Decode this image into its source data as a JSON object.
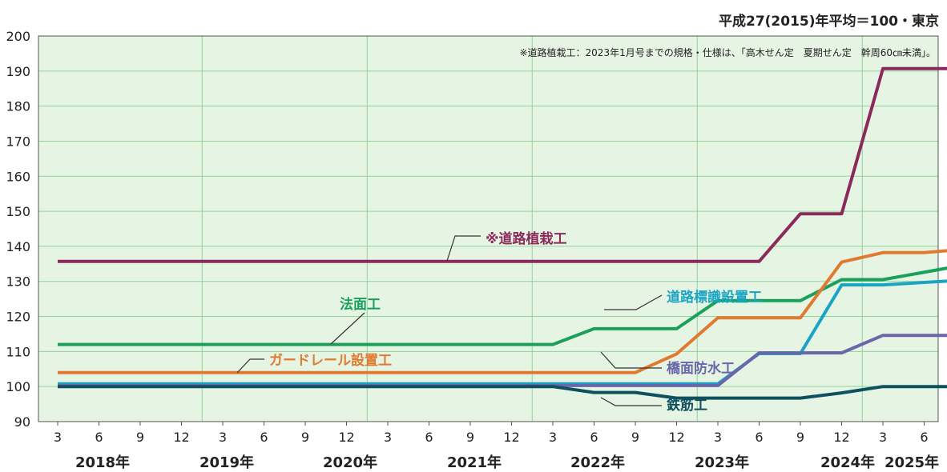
{
  "chart_data": {
    "type": "line",
    "title": "平成27(2015)年平均＝100・東京",
    "note": "※道路植栽工：2023年1月号までの規格・仕様は、「高木せん定　夏期せん定　幹周60㎝未満」。",
    "ylim": [
      90,
      200
    ],
    "yticks": [
      "90",
      "100",
      "110",
      "120",
      "130",
      "140",
      "150",
      "160",
      "170",
      "180",
      "190",
      "200"
    ],
    "x_month_labels": [
      "3",
      "6",
      "9",
      "12",
      "3",
      "6",
      "9",
      "12",
      "3",
      "6",
      "9",
      "12",
      "3",
      "6",
      "9",
      "12",
      "3",
      "6",
      "9",
      "12",
      "3",
      "6",
      "9",
      "12",
      "3",
      "6",
      "9",
      "12",
      "3"
    ],
    "year_labels": [
      "2018年",
      "2019年",
      "2020年",
      "2021年",
      "2022年",
      "2023年",
      "2024年",
      "2025年"
    ],
    "grid": true,
    "series": [
      {
        "name": "※道路植栽工",
        "color": "#8b2a5a",
        "points": [
          [
            "2018-03",
            135.7
          ],
          [
            "2022-06",
            135.7
          ],
          [
            "2022-09",
            149.3
          ],
          [
            "2022-12",
            149.3
          ],
          [
            "2023-03",
            190.7
          ],
          [
            "2023-09",
            190.7
          ],
          [
            "2023-12",
            192.3
          ],
          [
            "2025-03",
            192.3
          ]
        ]
      },
      {
        "name": "法面工",
        "color": "#1aa05a",
        "points": [
          [
            "2018-03",
            112.0
          ],
          [
            "2021-03",
            112.0
          ],
          [
            "2021-06",
            116.5
          ],
          [
            "2021-12",
            116.5
          ],
          [
            "2022-03",
            124.5
          ],
          [
            "2022-09",
            124.5
          ],
          [
            "2022-12",
            130.5
          ],
          [
            "2023-03",
            130.5
          ],
          [
            "2023-09",
            134.7
          ],
          [
            "2024-09",
            134.7
          ],
          [
            "2024-12",
            138.4
          ],
          [
            "2025-03",
            138.4
          ]
        ]
      },
      {
        "name": "ガードレール設置工",
        "color": "#e07a30",
        "points": [
          [
            "2018-03",
            104.0
          ],
          [
            "2021-09",
            104.0
          ],
          [
            "2021-12",
            109.3
          ],
          [
            "2022-03",
            119.6
          ],
          [
            "2022-09",
            119.6
          ],
          [
            "2022-12",
            135.5
          ],
          [
            "2023-03",
            138.2
          ],
          [
            "2023-06",
            138.2
          ],
          [
            "2023-09",
            139.2
          ],
          [
            "2023-12",
            142.7
          ],
          [
            "2024-12",
            142.7
          ],
          [
            "2025-03",
            146.9
          ],
          [
            "2025-06",
            146.9
          ]
        ]
      },
      {
        "name": "道路標識設置工",
        "color": "#1aa4c4",
        "points": [
          [
            "2018-03",
            100.8
          ],
          [
            "2022-03",
            100.8
          ],
          [
            "2022-06",
            109.4
          ],
          [
            "2022-09",
            109.4
          ],
          [
            "2022-12",
            129.0
          ],
          [
            "2023-03",
            129.0
          ],
          [
            "2023-09",
            130.4
          ],
          [
            "2023-12",
            133.1
          ],
          [
            "2024-03",
            133.1
          ],
          [
            "2024-06",
            134.6
          ],
          [
            "2024-12",
            134.6
          ],
          [
            "2025-03",
            138.8
          ],
          [
            "2025-06",
            138.8
          ]
        ]
      },
      {
        "name": "橋面防水工",
        "color": "#6b66aa",
        "points": [
          [
            "2018-03",
            100.3
          ],
          [
            "2022-03",
            100.3
          ],
          [
            "2022-06",
            109.6
          ],
          [
            "2022-12",
            109.6
          ],
          [
            "2023-03",
            114.6
          ],
          [
            "2023-09",
            114.6
          ],
          [
            "2023-12",
            120.7
          ],
          [
            "2024-09",
            120.7
          ],
          [
            "2024-12",
            124.8
          ],
          [
            "2025-06",
            124.8
          ]
        ]
      },
      {
        "name": "鉄筋工",
        "color": "#0f5060",
        "points": [
          [
            "2018-03",
            100.0
          ],
          [
            "2021-03",
            100.0
          ],
          [
            "2021-06",
            98.3
          ],
          [
            "2021-09",
            98.3
          ],
          [
            "2021-12",
            96.7
          ],
          [
            "2022-09",
            96.7
          ],
          [
            "2022-12",
            98.2
          ],
          [
            "2023-03",
            100.0
          ],
          [
            "2023-12",
            100.0
          ],
          [
            "2024-03",
            101.3
          ],
          [
            "2025-06",
            101.3
          ]
        ]
      }
    ]
  }
}
